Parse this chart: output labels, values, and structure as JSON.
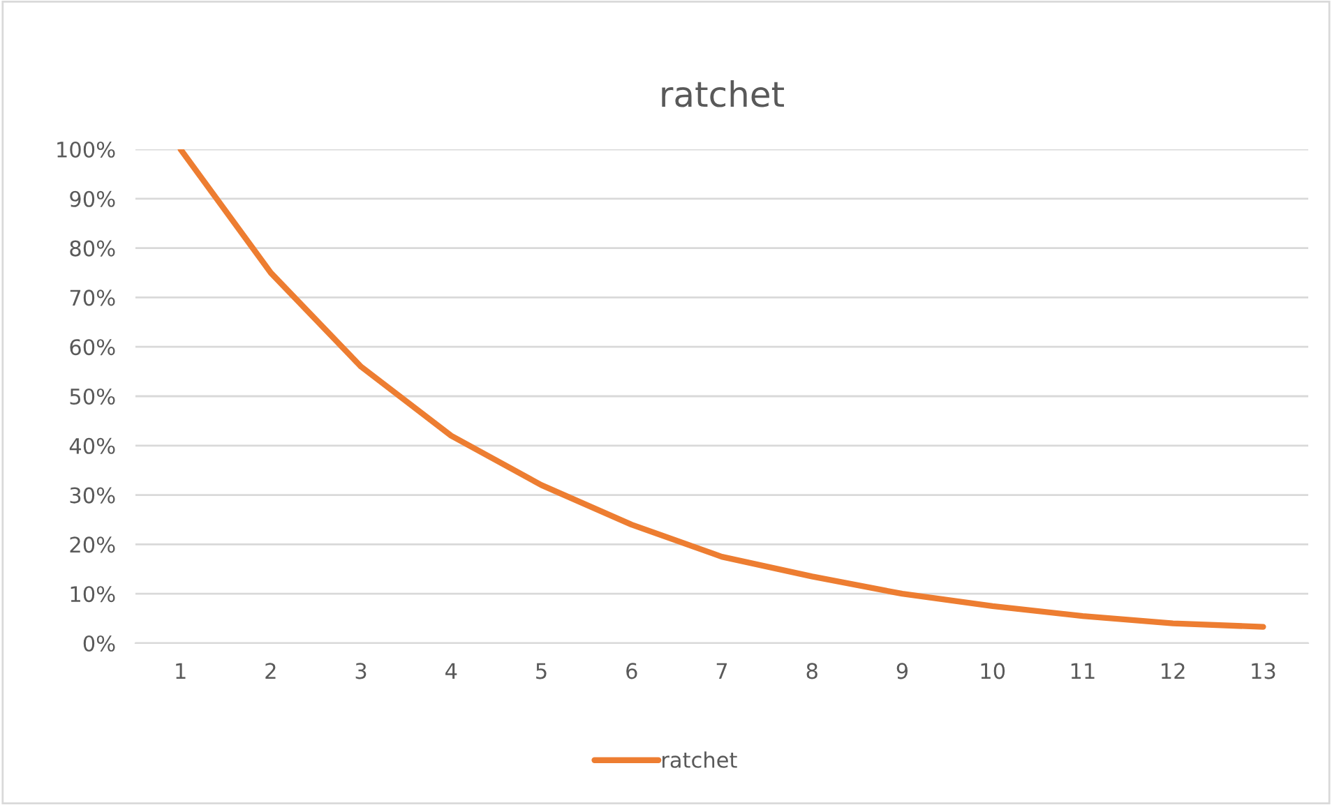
{
  "chart_data": {
    "type": "line",
    "title": "ratchet",
    "categories": [
      "1",
      "2",
      "3",
      "4",
      "5",
      "6",
      "7",
      "8",
      "9",
      "10",
      "11",
      "12",
      "13"
    ],
    "series": [
      {
        "name": "ratchet",
        "color": "#ed7d31",
        "values": [
          100,
          75,
          56,
          42,
          32,
          24,
          17.5,
          13.5,
          10,
          7.5,
          5.5,
          4,
          3.3
        ]
      }
    ],
    "ylim": [
      0,
      100
    ],
    "yticks": [
      {
        "value": 0,
        "label": "0%"
      },
      {
        "value": 10,
        "label": "10%"
      },
      {
        "value": 20,
        "label": "20%"
      },
      {
        "value": 30,
        "label": "30%"
      },
      {
        "value": 40,
        "label": "40%"
      },
      {
        "value": 50,
        "label": "50%"
      },
      {
        "value": 60,
        "label": "60%"
      },
      {
        "value": 70,
        "label": "70%"
      },
      {
        "value": 80,
        "label": "80%"
      },
      {
        "value": 90,
        "label": "90%"
      },
      {
        "value": 100,
        "label": "100%"
      }
    ],
    "grid": "y",
    "legend": "bottom",
    "marker": "none",
    "line_style": "solid"
  }
}
